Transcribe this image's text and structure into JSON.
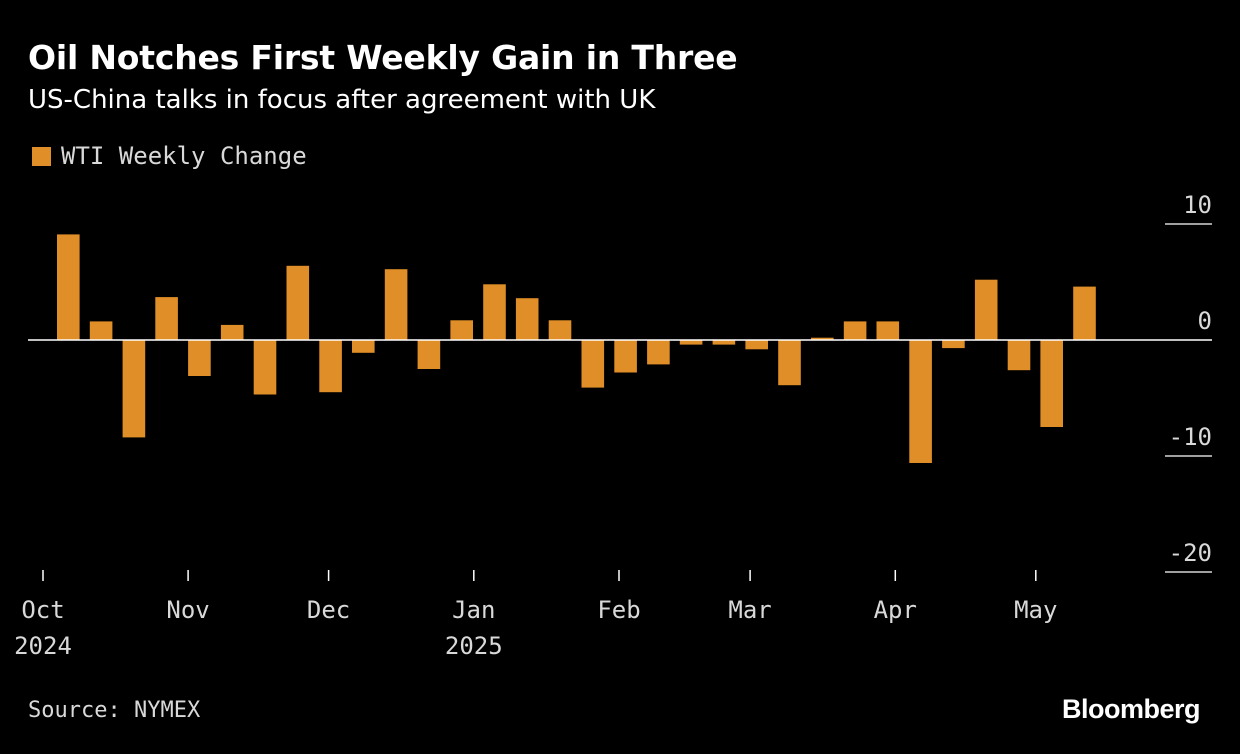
{
  "header": {
    "title": "Oil Notches First Weekly Gain in Three",
    "subtitle": "US-China talks in focus after agreement with UK"
  },
  "footer": {
    "source": "Source: NYMEX",
    "brand": "Bloomberg"
  },
  "colors": {
    "background": "#000000",
    "bar": "#e08e27",
    "zero_line": "#ffffff",
    "text": "#ffffff",
    "muted_text": "#d9d9d9"
  },
  "chart_data": {
    "type": "bar",
    "title": "Oil Notches First Weekly Gain in Three",
    "subtitle": "US-China talks in focus after agreement with UK",
    "legend_position": "top-left",
    "y_axis_side": "right",
    "grid": false,
    "ylim": [
      -20,
      10
    ],
    "yticks": [
      {
        "value": 10,
        "label": "10"
      },
      {
        "value": 0,
        "label": "0"
      },
      {
        "value": -10,
        "label": "-10"
      },
      {
        "value": -20,
        "label": "-20"
      }
    ],
    "x_ticks": [
      {
        "date": "2024-10-01",
        "label": "Oct",
        "sublabel": "2024"
      },
      {
        "date": "2024-11-01",
        "label": "Nov",
        "sublabel": ""
      },
      {
        "date": "2024-12-01",
        "label": "Dec",
        "sublabel": ""
      },
      {
        "date": "2025-01-01",
        "label": "Jan",
        "sublabel": "2025"
      },
      {
        "date": "2025-02-01",
        "label": "Feb",
        "sublabel": ""
      },
      {
        "date": "2025-03-01",
        "label": "Mar",
        "sublabel": ""
      },
      {
        "date": "2025-04-01",
        "label": "Apr",
        "sublabel": ""
      },
      {
        "date": "2025-05-01",
        "label": "May",
        "sublabel": ""
      }
    ],
    "x_range": [
      "2024-09-20",
      "2025-05-31"
    ],
    "series": [
      {
        "name": "WTI Weekly Change",
        "x": [
          "2024-10-04",
          "2024-10-11",
          "2024-10-18",
          "2024-10-25",
          "2024-11-01",
          "2024-11-08",
          "2024-11-15",
          "2024-11-22",
          "2024-11-29",
          "2024-12-06",
          "2024-12-13",
          "2024-12-20",
          "2024-12-27",
          "2025-01-03",
          "2025-01-10",
          "2025-01-17",
          "2025-01-24",
          "2025-01-31",
          "2025-02-07",
          "2025-02-14",
          "2025-02-21",
          "2025-02-28",
          "2025-03-07",
          "2025-03-14",
          "2025-03-21",
          "2025-03-28",
          "2025-04-04",
          "2025-04-11",
          "2025-04-18",
          "2025-04-25",
          "2025-05-02",
          "2025-05-09"
        ],
        "values": [
          9.1,
          1.6,
          -8.4,
          3.7,
          -3.1,
          1.3,
          -4.7,
          6.4,
          -4.5,
          -1.1,
          6.1,
          -2.5,
          1.7,
          4.8,
          3.6,
          1.7,
          -4.1,
          -2.8,
          -2.1,
          -0.4,
          -0.4,
          -0.8,
          -3.9,
          0.2,
          1.6,
          1.6,
          -10.6,
          -0.7,
          5.2,
          -2.6,
          -7.5,
          4.6
        ]
      }
    ]
  }
}
